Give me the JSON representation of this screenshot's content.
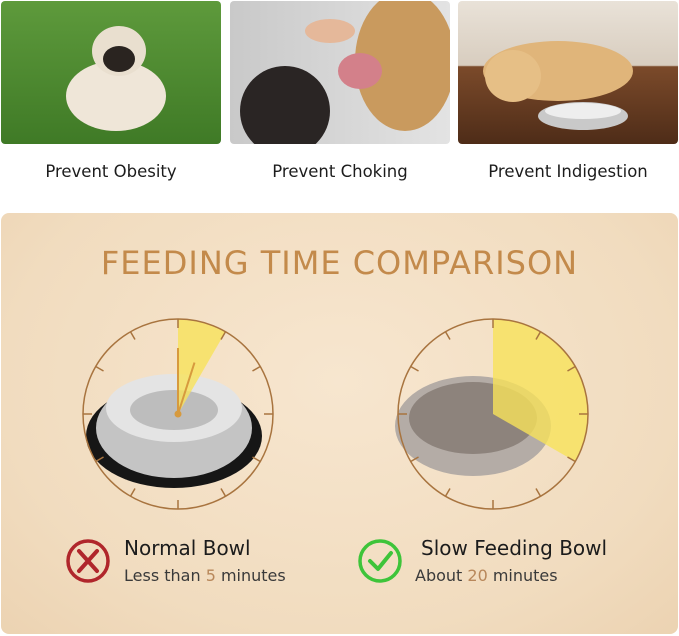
{
  "benefits": [
    {
      "label": "Prevent Obesity"
    },
    {
      "label": "Prevent Choking"
    },
    {
      "label": "Prevent Indigestion"
    }
  ],
  "comparison": {
    "title": "FEEDING TIME COMPARISON",
    "accent": "#c38a4b",
    "normal": {
      "name": "Normal Bowl",
      "prefix": "Less than ",
      "value": "5",
      "suffix": " minutes",
      "icon": "x-circle-icon",
      "color": "#b0262b"
    },
    "slow": {
      "name": "Slow Feeding Bowl",
      "prefix": "About ",
      "value": "20",
      "suffix": " minutes",
      "icon": "check-circle-icon",
      "color": "#3ec43a"
    }
  }
}
